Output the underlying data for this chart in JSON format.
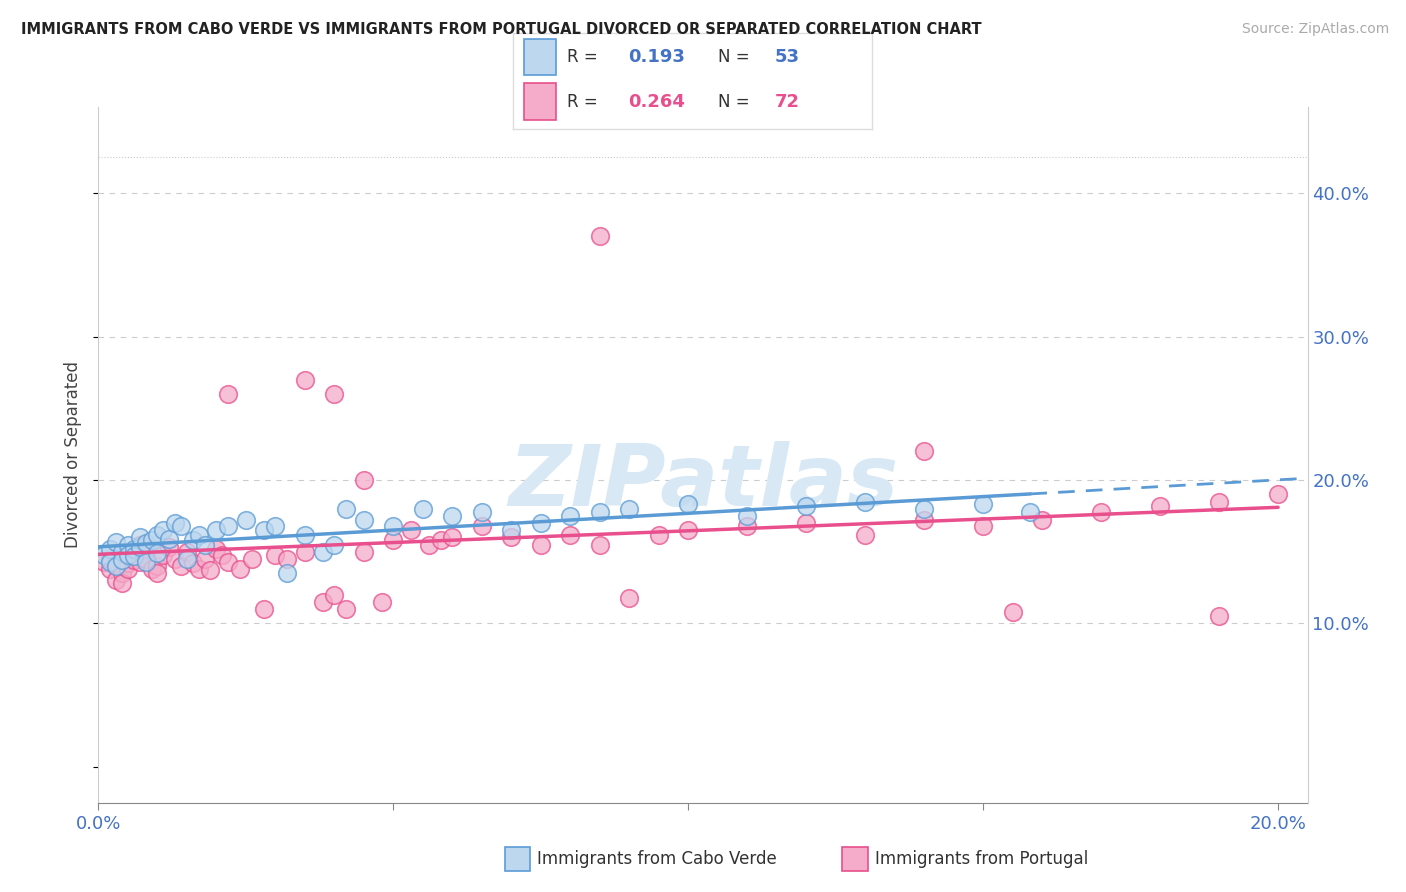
{
  "title": "IMMIGRANTS FROM CABO VERDE VS IMMIGRANTS FROM PORTUGAL DIVORCED OR SEPARATED CORRELATION CHART",
  "source": "Source: ZipAtlas.com",
  "ylabel": "Divorced or Separated",
  "xlim": [
    0.0,
    0.205
  ],
  "ylim": [
    -0.025,
    0.46
  ],
  "y_ticks_right": [
    0.1,
    0.2,
    0.3,
    0.4
  ],
  "y_tick_labels_right": [
    "10.0%",
    "20.0%",
    "30.0%",
    "40.0%"
  ],
  "x_ticks": [
    0.0,
    0.05,
    0.1,
    0.15,
    0.2
  ],
  "x_tick_labels": [
    "0.0%",
    "",
    "",
    "",
    "20.0%"
  ],
  "R1": "0.193",
  "N1": "53",
  "R2": "0.264",
  "N2": "72",
  "blue_edge": "#5B9BD5",
  "blue_face": "#BDD7EE",
  "pink_edge": "#E84F8C",
  "pink_face": "#F4ACCA",
  "text_blue": "#4472C4",
  "text_pink": "#E84F8C",
  "watermark_color": "#D8E8F5",
  "label1": "Immigrants from Cabo Verde",
  "label2": "Immigrants from Portugal",
  "cabo_verde_x": [
    0.001,
    0.002,
    0.002,
    0.003,
    0.003,
    0.004,
    0.004,
    0.005,
    0.005,
    0.006,
    0.006,
    0.007,
    0.007,
    0.008,
    0.008,
    0.009,
    0.01,
    0.01,
    0.011,
    0.012,
    0.013,
    0.014,
    0.015,
    0.016,
    0.017,
    0.018,
    0.02,
    0.022,
    0.025,
    0.028,
    0.03,
    0.032,
    0.035,
    0.038,
    0.04,
    0.042,
    0.045,
    0.05,
    0.055,
    0.06,
    0.065,
    0.07,
    0.075,
    0.08,
    0.085,
    0.09,
    0.1,
    0.11,
    0.12,
    0.13,
    0.14,
    0.15,
    0.158
  ],
  "cabo_verde_y": [
    0.148,
    0.152,
    0.143,
    0.157,
    0.14,
    0.15,
    0.144,
    0.155,
    0.148,
    0.152,
    0.147,
    0.153,
    0.16,
    0.156,
    0.143,
    0.158,
    0.162,
    0.149,
    0.165,
    0.159,
    0.17,
    0.168,
    0.145,
    0.158,
    0.162,
    0.155,
    0.165,
    0.168,
    0.172,
    0.165,
    0.168,
    0.135,
    0.162,
    0.15,
    0.155,
    0.18,
    0.172,
    0.168,
    0.18,
    0.175,
    0.178,
    0.165,
    0.17,
    0.175,
    0.178,
    0.18,
    0.183,
    0.175,
    0.182,
    0.185,
    0.18,
    0.183,
    0.178
  ],
  "portugal_x": [
    0.001,
    0.002,
    0.002,
    0.003,
    0.003,
    0.004,
    0.004,
    0.005,
    0.005,
    0.006,
    0.006,
    0.007,
    0.007,
    0.008,
    0.008,
    0.009,
    0.01,
    0.01,
    0.011,
    0.012,
    0.013,
    0.014,
    0.015,
    0.016,
    0.017,
    0.018,
    0.019,
    0.02,
    0.021,
    0.022,
    0.024,
    0.026,
    0.028,
    0.03,
    0.032,
    0.035,
    0.038,
    0.04,
    0.042,
    0.045,
    0.048,
    0.05,
    0.053,
    0.056,
    0.058,
    0.06,
    0.065,
    0.07,
    0.075,
    0.08,
    0.085,
    0.09,
    0.095,
    0.1,
    0.11,
    0.12,
    0.13,
    0.14,
    0.15,
    0.16,
    0.17,
    0.18,
    0.19,
    0.2,
    0.022,
    0.035,
    0.04,
    0.045,
    0.085,
    0.14,
    0.155,
    0.19
  ],
  "portugal_y": [
    0.143,
    0.138,
    0.145,
    0.14,
    0.13,
    0.135,
    0.128,
    0.142,
    0.138,
    0.144,
    0.15,
    0.143,
    0.155,
    0.152,
    0.145,
    0.138,
    0.14,
    0.135,
    0.148,
    0.153,
    0.145,
    0.14,
    0.15,
    0.142,
    0.138,
    0.145,
    0.137,
    0.152,
    0.148,
    0.143,
    0.138,
    0.145,
    0.11,
    0.148,
    0.145,
    0.15,
    0.115,
    0.12,
    0.11,
    0.15,
    0.115,
    0.158,
    0.165,
    0.155,
    0.158,
    0.16,
    0.168,
    0.16,
    0.155,
    0.162,
    0.155,
    0.118,
    0.162,
    0.165,
    0.168,
    0.17,
    0.162,
    0.172,
    0.168,
    0.172,
    0.178,
    0.182,
    0.185,
    0.19,
    0.26,
    0.27,
    0.26,
    0.2,
    0.37,
    0.22,
    0.108,
    0.105
  ]
}
